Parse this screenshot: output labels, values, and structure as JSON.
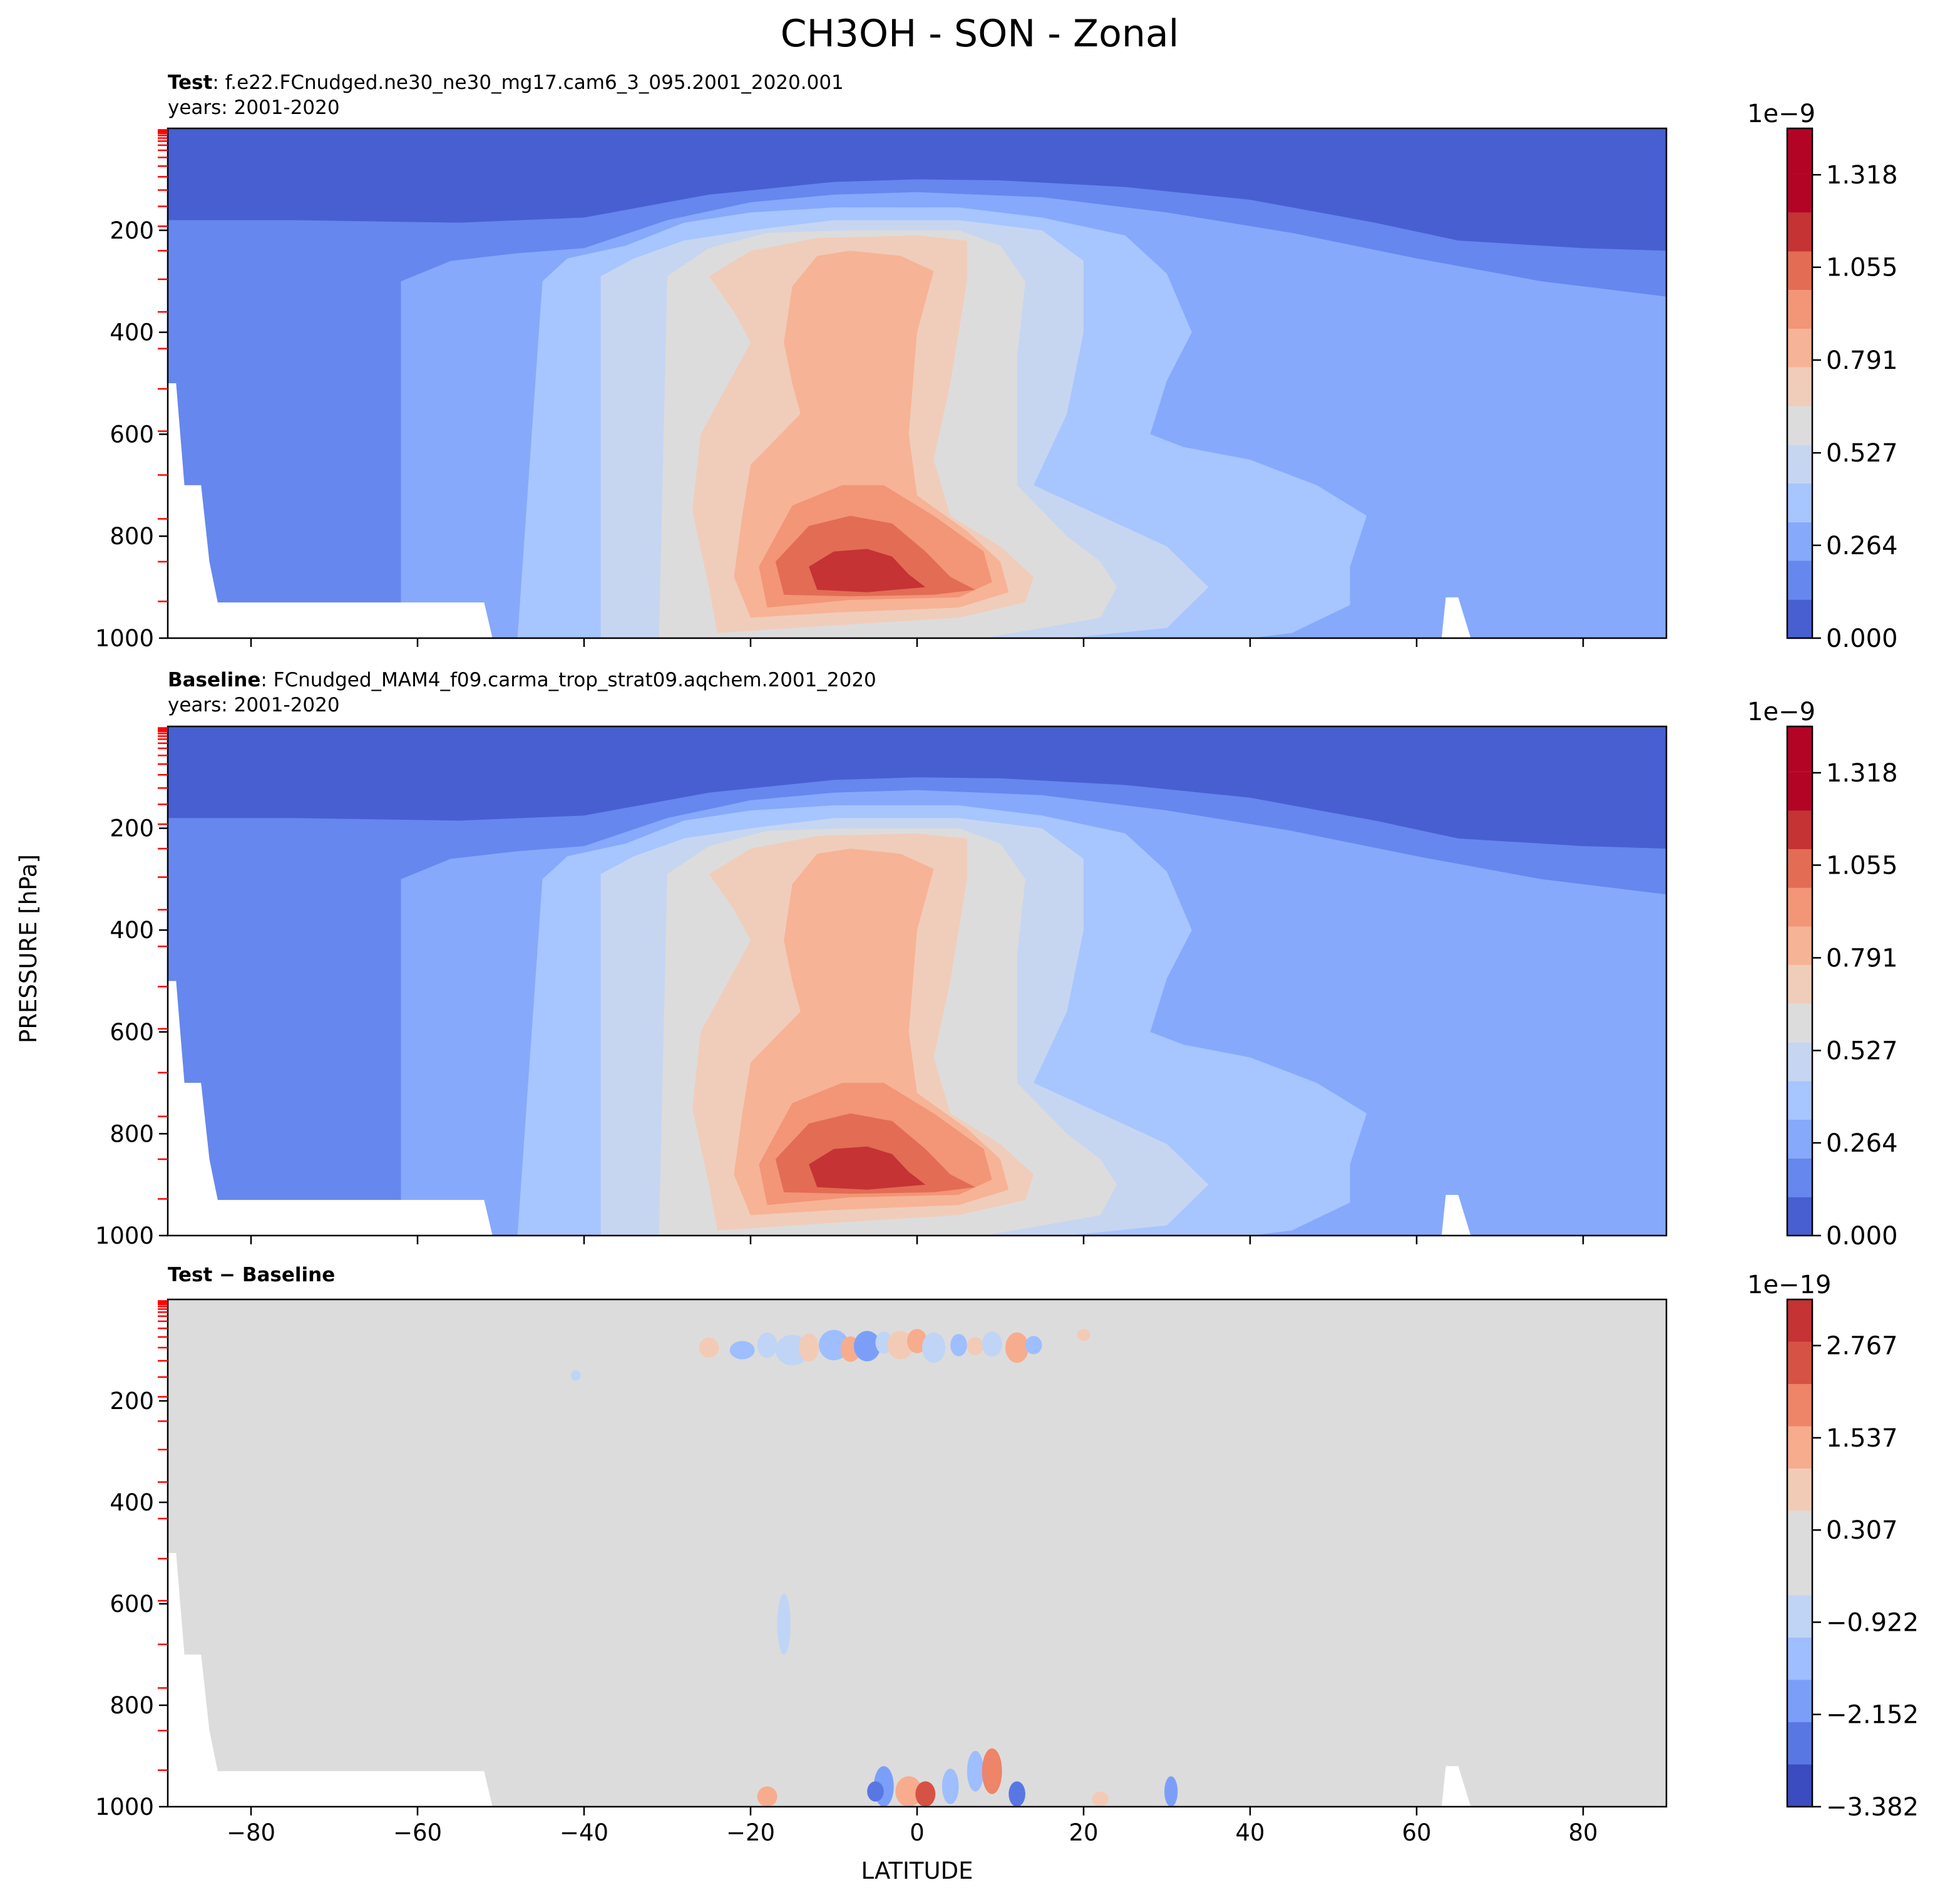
{
  "figure": {
    "title": "CH3OH - SON - Zonal",
    "xlabel": "LATITUDE",
    "ylabel": "PRESSURE [hPa]"
  },
  "colors": {
    "fill_levels": [
      "#485fd1",
      "#6687ed",
      "#86a9fc",
      "#a7c5fe",
      "#c6d6f1",
      "#dddcdc",
      "#f0cdbb",
      "#f7b396",
      "#f39577",
      "#e36c55",
      "#c53334",
      "#b40426"
    ],
    "missing": "#ffffff",
    "model_level_tick": "#ff0000"
  },
  "chart_data": [
    {
      "type": "heatmap",
      "panel": "test",
      "title_bold": "Test",
      "title_rest": ": f.e22.FCnudged.ne30_ne30_mg17.cam6_3_095.2001_2020.001",
      "subtitle": "years: 2001-2020",
      "x": [
        -80,
        -60,
        -40,
        -20,
        0,
        20,
        40,
        60,
        80
      ],
      "xlim": [
        -90,
        90
      ],
      "ylim": [
        1000,
        0
      ],
      "y_ticks": [
        200,
        400,
        600,
        800,
        1000
      ],
      "colorbar": {
        "exponent_label": "1e−9",
        "levels": [
          0.0,
          0.11,
          0.22,
          0.33,
          0.44,
          0.55,
          0.66,
          0.77,
          0.88,
          0.99,
          1.1,
          1.21,
          1.32
        ],
        "tick_labels": [
          "0.000",
          "0.264",
          "0.527",
          "0.791",
          "1.055",
          "1.318"
        ],
        "tick_values": [
          0.0,
          0.264,
          0.527,
          0.791,
          1.055,
          1.318
        ],
        "range": [
          0.0,
          1.45
        ]
      },
      "field": {
        "description_units": "1e-9",
        "peak": {
          "lat": -5,
          "pressure": 880,
          "value": 1.35
        }
      }
    },
    {
      "type": "heatmap",
      "panel": "baseline",
      "title_bold": "Baseline",
      "title_rest": ": FCnudged_MAM4_f09.carma_trop_strat09.aqchem.2001_2020",
      "subtitle": "years: 2001-2020",
      "x": [
        -80,
        -60,
        -40,
        -20,
        0,
        20,
        40,
        60,
        80
      ],
      "xlim": [
        -90,
        90
      ],
      "ylim": [
        1000,
        0
      ],
      "y_ticks": [
        200,
        400,
        600,
        800,
        1000
      ],
      "colorbar": {
        "exponent_label": "1e−9",
        "levels": [
          0.0,
          0.11,
          0.22,
          0.33,
          0.44,
          0.55,
          0.66,
          0.77,
          0.88,
          0.99,
          1.1,
          1.21,
          1.32
        ],
        "tick_labels": [
          "0.000",
          "0.264",
          "0.527",
          "0.791",
          "1.055",
          "1.318"
        ],
        "tick_values": [
          0.0,
          0.264,
          0.527,
          0.791,
          1.055,
          1.318
        ],
        "range": [
          0.0,
          1.45
        ]
      },
      "field": {
        "description_units": "1e-9",
        "peak": {
          "lat": -5,
          "pressure": 880,
          "value": 1.35
        }
      }
    },
    {
      "type": "heatmap",
      "panel": "difference",
      "title_bold": "Test − Baseline",
      "title_rest": "",
      "subtitle": "",
      "x": [
        -80,
        -60,
        -40,
        -20,
        0,
        20,
        40,
        60,
        80
      ],
      "xlim": [
        -90,
        90
      ],
      "ylim": [
        1000,
        0
      ],
      "y_ticks": [
        200,
        400,
        600,
        800,
        1000
      ],
      "colorbar": {
        "exponent_label": "1e−19",
        "tick_labels": [
          "−3.382",
          "−2.152",
          "−0.922",
          "0.307",
          "1.537",
          "2.767"
        ],
        "tick_values": [
          -3.382,
          -2.152,
          -0.922,
          0.307,
          1.537,
          2.767
        ],
        "range": [
          -3.382,
          3.382
        ]
      },
      "field": {
        "description_units": "1e-19",
        "background_value": 0.0
      }
    }
  ]
}
